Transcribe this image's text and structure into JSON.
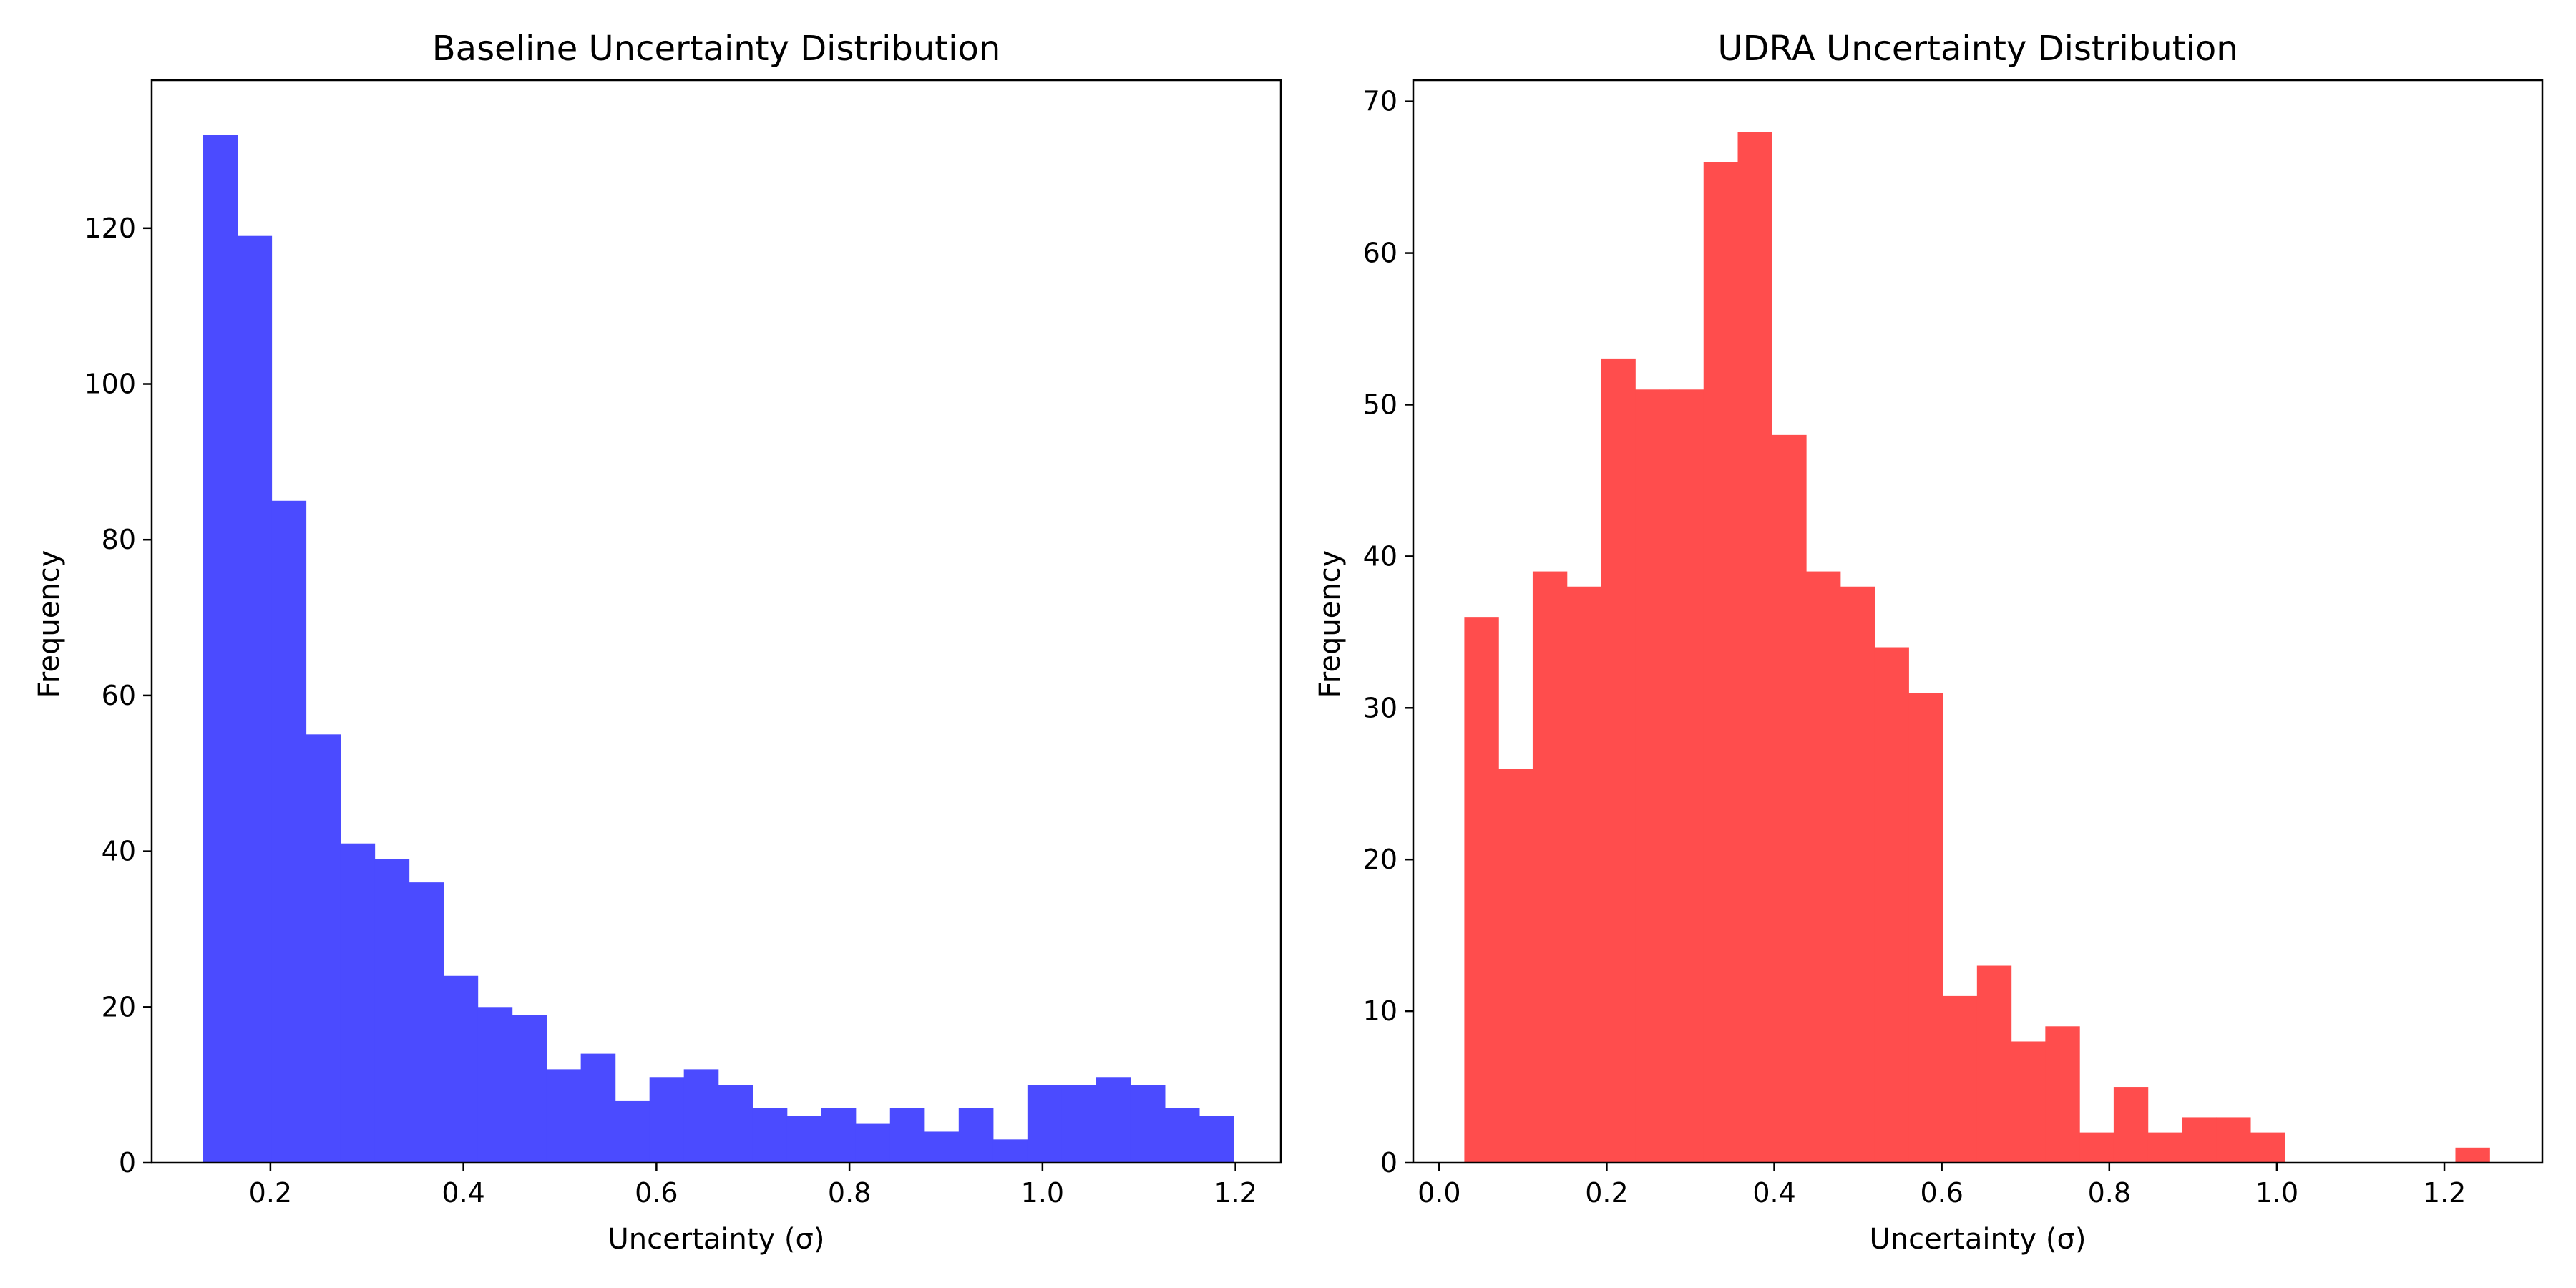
{
  "chart_data": [
    {
      "type": "bar",
      "title": "Baseline Uncertainty Distribution",
      "xlabel": "Uncertainty (σ)",
      "ylabel": "Frequency",
      "color": "#4b4bff",
      "bin_start": 0.13,
      "bin_width": 0.0356,
      "values": [
        132,
        119,
        85,
        55,
        41,
        39,
        36,
        24,
        20,
        19,
        12,
        14,
        8,
        11,
        12,
        10,
        7,
        6,
        7,
        5,
        7,
        4,
        7,
        3,
        10,
        10,
        11,
        10,
        7,
        6
      ],
      "xlim": [
        0.077,
        1.247
      ],
      "ylim": [
        0,
        139
      ],
      "xticks": [
        0.2,
        0.4,
        0.6,
        0.8,
        1.0,
        1.2
      ],
      "xtick_labels": [
        "0.2",
        "0.4",
        "0.6",
        "0.8",
        "1.0",
        "1.2"
      ],
      "yticks": [
        0,
        20,
        40,
        60,
        80,
        100,
        120
      ],
      "ytick_labels": [
        "0",
        "20",
        "40",
        "60",
        "80",
        "100",
        "120"
      ],
      "grid": false,
      "legend": false
    },
    {
      "type": "bar",
      "title": "UDRA Uncertainty Distribution",
      "xlabel": "Uncertainty (σ)",
      "ylabel": "Frequency",
      "color": "#ff4d4d",
      "bin_start": 0.03,
      "bin_width": 0.0408,
      "values": [
        36,
        26,
        39,
        38,
        53,
        51,
        51,
        66,
        68,
        48,
        39,
        38,
        34,
        31,
        11,
        13,
        8,
        9,
        2,
        5,
        2,
        3,
        3,
        2,
        0,
        0,
        0,
        0,
        0,
        1
      ],
      "xlim": [
        -0.031,
        1.317
      ],
      "ylim": [
        0,
        71.4
      ],
      "xticks": [
        0.0,
        0.2,
        0.4,
        0.6,
        0.8,
        1.0,
        1.2
      ],
      "xtick_labels": [
        "0.0",
        "0.2",
        "0.4",
        "0.6",
        "0.8",
        "1.0",
        "1.2"
      ],
      "yticks": [
        0,
        10,
        20,
        30,
        40,
        50,
        60,
        70
      ],
      "ytick_labels": [
        "0",
        "10",
        "20",
        "30",
        "40",
        "50",
        "60",
        "70"
      ],
      "grid": false,
      "legend": false
    }
  ]
}
